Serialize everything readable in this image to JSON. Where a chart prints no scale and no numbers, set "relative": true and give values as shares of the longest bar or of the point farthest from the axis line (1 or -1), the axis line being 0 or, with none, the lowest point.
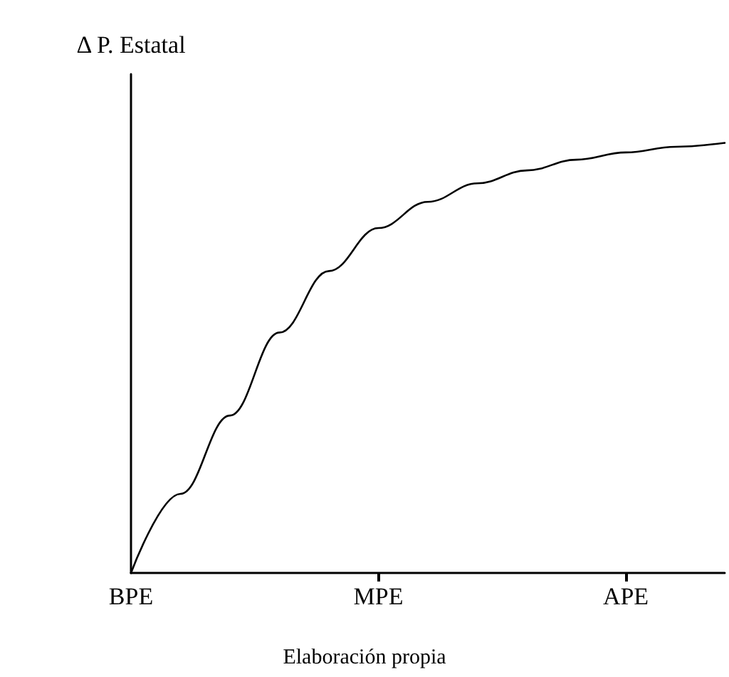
{
  "chart_data": {
    "type": "line",
    "ylabel": "Δ P. Estatal",
    "annotations": [
      "Elaboración propia"
    ],
    "relative": true,
    "categories": [
      "BPE",
      null,
      null,
      null,
      null,
      "MPE",
      null,
      null,
      null,
      null,
      "APE",
      null,
      null
    ],
    "series": [
      {
        "color": "#000000",
        "values": [
          0,
          0.184,
          0.366,
          0.559,
          0.702,
          0.802,
          0.863,
          0.906,
          0.936,
          0.961,
          0.978,
          0.991,
          1
        ]
      }
    ],
    "marker": "none",
    "line_style": "solid",
    "grid": false
  }
}
